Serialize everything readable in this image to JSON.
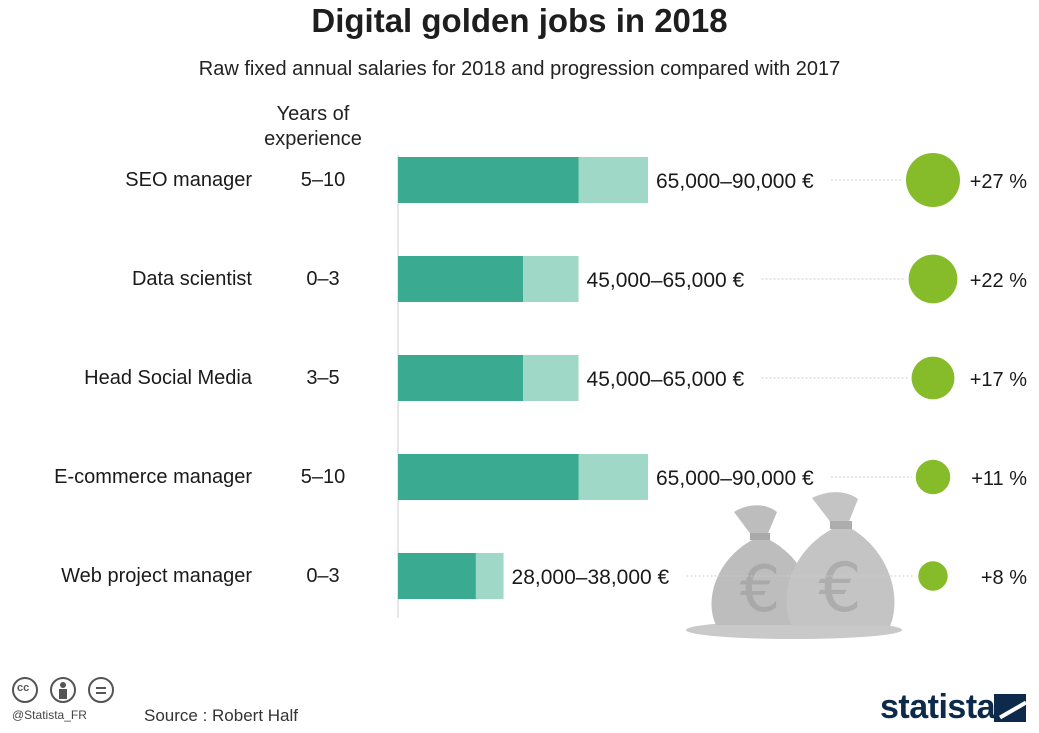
{
  "title": "Digital golden jobs in 2018",
  "subtitle": "Raw fixed annual salaries for 2018 and progression compared with 2017",
  "experience_header": [
    "Years of",
    "experience"
  ],
  "colors": {
    "bar_min": "#3aab91",
    "bar_range": "#a0d8c8",
    "growth_circle": "#86bb2a",
    "axis": "#cccccc",
    "leader": "#cccccc",
    "bag": "#bdbdbd"
  },
  "chart_data": {
    "type": "bar",
    "orientation": "horizontal",
    "categories": [
      "SEO manager",
      "Data scientist",
      "Head Social Media",
      "E-commerce manager",
      "Web project manager"
    ],
    "experience": [
      "5–10",
      "0–3",
      "3–5",
      "5–10",
      "0–3"
    ],
    "salary_min": [
      65000,
      45000,
      45000,
      65000,
      28000
    ],
    "salary_max": [
      90000,
      65000,
      65000,
      90000,
      38000
    ],
    "salary_labels": [
      "65,000–90,000 €",
      "45,000–65,000 €",
      "45,000–65,000 €",
      "65,000–90,000 €",
      "28,000–38,000 €"
    ],
    "growth_percent": [
      27,
      22,
      17,
      11,
      8
    ],
    "growth_labels": [
      "+27 %",
      "+22 %",
      "+17 %",
      "+11 %",
      "+8 %"
    ],
    "xlim": [
      0,
      90000
    ],
    "grid": false,
    "legend": "none"
  },
  "footer": {
    "handle": "@Statista_FR",
    "source": "Source : Robert Half",
    "brand": "statista"
  },
  "icons": [
    "cc-icon",
    "by-icon",
    "nd-icon",
    "money-bags-icon",
    "statista-logo-icon"
  ]
}
